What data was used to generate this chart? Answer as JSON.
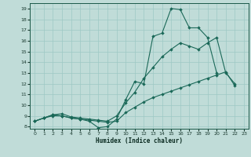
{
  "background_color": "#c0dcd8",
  "grid_color": "#9dc8c4",
  "line_color": "#1a6858",
  "xlabel": "Humidex (Indice chaleur)",
  "xlim": [
    -0.5,
    23.5
  ],
  "ylim": [
    7.8,
    19.5
  ],
  "yticks": [
    8,
    9,
    10,
    11,
    12,
    13,
    14,
    15,
    16,
    17,
    18,
    19
  ],
  "xticks": [
    0,
    1,
    2,
    3,
    4,
    5,
    6,
    7,
    8,
    9,
    10,
    11,
    12,
    13,
    14,
    15,
    16,
    17,
    18,
    19,
    20,
    21,
    22,
    23
  ],
  "series": [
    {
      "x": [
        0,
        1,
        2,
        3,
        4,
        5,
        6,
        7,
        8,
        9,
        10,
        11,
        12,
        13,
        14,
        15,
        16,
        17,
        18,
        19,
        20,
        21,
        22
      ],
      "y": [
        8.5,
        8.8,
        9.1,
        9.0,
        8.8,
        8.7,
        8.5,
        7.9,
        8.0,
        8.7,
        10.5,
        12.2,
        12.0,
        16.4,
        16.7,
        19.0,
        18.9,
        17.2,
        17.2,
        16.3,
        13.0,
        null,
        null
      ]
    },
    {
      "x": [
        0,
        1,
        2,
        3,
        4,
        5,
        6,
        7,
        8,
        9,
        10,
        11,
        12,
        13,
        14,
        15,
        16,
        17,
        18,
        19,
        20,
        21,
        22
      ],
      "y": [
        8.5,
        8.8,
        9.1,
        9.2,
        8.9,
        8.8,
        8.7,
        8.6,
        8.5,
        9.0,
        10.2,
        11.2,
        12.5,
        13.5,
        14.5,
        15.2,
        15.8,
        15.5,
        15.2,
        15.8,
        16.3,
        13.0,
        12.0
      ]
    },
    {
      "x": [
        0,
        1,
        2,
        3,
        4,
        5,
        6,
        7,
        8,
        9,
        10,
        11,
        12,
        13,
        14,
        15,
        16,
        17,
        18,
        19,
        20,
        21,
        22
      ],
      "y": [
        8.5,
        8.8,
        9.0,
        9.0,
        8.8,
        8.7,
        8.6,
        8.5,
        8.4,
        8.5,
        9.3,
        9.8,
        10.3,
        10.7,
        11.0,
        11.3,
        11.6,
        11.9,
        12.2,
        12.5,
        12.8,
        13.1,
        11.8
      ]
    }
  ]
}
